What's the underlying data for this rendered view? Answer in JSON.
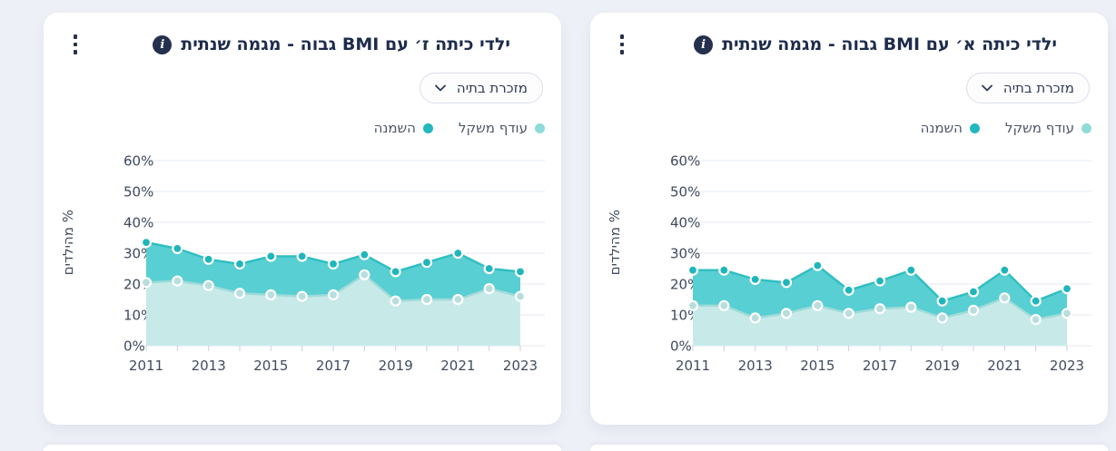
{
  "page": {
    "background_color": "#edf0f7",
    "card_color": "#ffffff",
    "title_color": "#1d2b4c",
    "axis_text_color": "#414c5e",
    "grid_color": "#e4e8f1"
  },
  "cards": [
    {
      "title": "ילדי כיתה ז׳ עם BMI גבוה - מגמה שנתית",
      "info_icon": "i",
      "dropdown": {
        "value": "מזכרת בתיה"
      },
      "legend": [
        {
          "id": "overweight",
          "label": "עודף משקל",
          "color": "#8edcd9"
        },
        {
          "id": "obesity",
          "label": "השמנה",
          "color": "#23b8bd"
        }
      ],
      "chart_data": {
        "type": "area",
        "x": [
          2011,
          2012,
          2013,
          2014,
          2015,
          2016,
          2017,
          2018,
          2019,
          2020,
          2021,
          2022,
          2023
        ],
        "x_tick_labels": [
          "2011",
          "2013",
          "2015",
          "2017",
          "2019",
          "2021",
          "2023"
        ],
        "ylabel": "% מהילדים",
        "ylim": [
          0,
          60
        ],
        "ytick_step": 10,
        "ytick_suffix": "%",
        "grid": true,
        "legend_position": "top-right",
        "series": [
          {
            "id": "overweight",
            "name": "עודף משקל",
            "values": [
              20.5,
              21,
              19.5,
              17,
              16.5,
              16,
              16.5,
              23,
              14.5,
              15,
              15,
              18.5,
              16
            ],
            "line_color": "#9edbd9",
            "fill_color": "#c7eae9",
            "point_color": "#b9dedd"
          },
          {
            "id": "obesity",
            "name": "השמנה",
            "values": [
              33.5,
              31.5,
              28,
              26.5,
              29,
              29,
              26.5,
              29.5,
              24,
              27,
              30,
              25,
              24
            ],
            "line_color": "#2fbec2",
            "fill_color": "#58cfd2",
            "point_color": "#1fb6bb"
          }
        ]
      }
    },
    {
      "title": "ילדי כיתה א׳ עם BMI גבוה - מגמה שנתית",
      "info_icon": "i",
      "dropdown": {
        "value": "מזכרת בתיה"
      },
      "legend": [
        {
          "id": "overweight",
          "label": "עודף משקל",
          "color": "#8edcd9"
        },
        {
          "id": "obesity",
          "label": "השמנה",
          "color": "#23b8bd"
        }
      ],
      "chart_data": {
        "type": "area",
        "x": [
          2011,
          2012,
          2013,
          2014,
          2015,
          2016,
          2017,
          2018,
          2019,
          2020,
          2021,
          2022,
          2023
        ],
        "x_tick_labels": [
          "2011",
          "2013",
          "2015",
          "2017",
          "2019",
          "2021",
          "2023"
        ],
        "ylabel": "% מהילדים",
        "ylim": [
          0,
          60
        ],
        "ytick_step": 10,
        "ytick_suffix": "%",
        "grid": true,
        "legend_position": "top-right",
        "series": [
          {
            "id": "overweight",
            "name": "עודף משקל",
            "values": [
              13,
              13,
              9,
              10.5,
              13,
              10.5,
              12,
              12.5,
              9,
              11.5,
              15.5,
              8.5,
              10.5
            ],
            "line_color": "#9edbd9",
            "fill_color": "#c7eae9",
            "point_color": "#b9dedd"
          },
          {
            "id": "obesity",
            "name": "השמנה",
            "values": [
              24.5,
              24.5,
              21.5,
              20.5,
              26,
              18,
              21,
              24.5,
              14.5,
              17.5,
              24.5,
              14.5,
              18.5
            ],
            "line_color": "#2fbec2",
            "fill_color": "#58cfd2",
            "point_color": "#1fb6bb"
          }
        ]
      }
    }
  ]
}
